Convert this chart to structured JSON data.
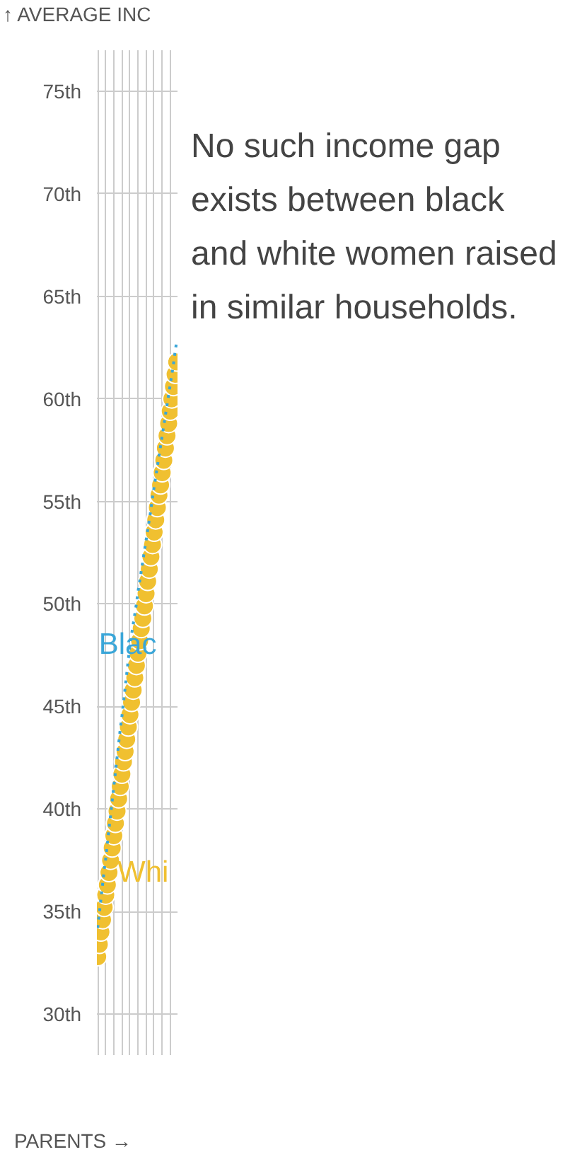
{
  "chart_data": {
    "type": "scatter",
    "ylabel": "↑ AVERAGE INC",
    "xlabel": "PARENTS →",
    "annotations": [
      "No such income gap exists between black and white women raised in similar households."
    ],
    "categories": [
      null,
      null,
      null,
      null,
      null,
      null,
      null,
      null,
      null,
      null,
      null,
      null,
      null,
      null,
      null,
      null,
      null,
      null,
      null,
      null,
      null,
      null,
      null,
      null,
      null,
      null,
      null,
      null,
      null,
      null,
      null,
      null,
      null,
      null,
      null,
      null,
      null,
      null,
      null,
      null,
      null,
      null,
      null,
      null,
      null,
      null,
      null,
      null,
      null,
      null
    ],
    "ylim": [
      28,
      77
    ],
    "yticks": [
      {
        "value": 30,
        "label": "30th"
      },
      {
        "value": 35,
        "label": "35th"
      },
      {
        "value": 40,
        "label": "40th"
      },
      {
        "value": 45,
        "label": "45th"
      },
      {
        "value": 50,
        "label": "50th"
      },
      {
        "value": 55,
        "label": "55th"
      },
      {
        "value": 60,
        "label": "60th"
      },
      {
        "value": 65,
        "label": "65th"
      },
      {
        "value": 70,
        "label": "70th"
      },
      {
        "value": 75,
        "label": "75th"
      }
    ],
    "grid": true,
    "series": [
      {
        "name": "Blac",
        "type": "line",
        "line_style": "dotted",
        "color": "#3aa6d8",
        "values": [
          34.2,
          34.9,
          35.6,
          36.3,
          37.0,
          37.6,
          38.3,
          39.0,
          39.7,
          40.4,
          41.1,
          41.8,
          42.5,
          43.2,
          43.9,
          44.5,
          45.2,
          45.9,
          46.6,
          47.3,
          48.0,
          48.5,
          49.0,
          49.5,
          50.0,
          50.6,
          51.1,
          51.6,
          52.1,
          52.6,
          53.1,
          53.6,
          54.1,
          54.6,
          55.2,
          55.7,
          56.2,
          56.7,
          57.2,
          57.7,
          58.2,
          58.7,
          59.2,
          59.7,
          60.2,
          60.7,
          61.2,
          61.7,
          62.3,
          62.8
        ]
      },
      {
        "name": "Whi",
        "color": "#f0c030",
        "marker": "circle",
        "values": [
          32.8,
          33.4,
          34.0,
          34.6,
          35.2,
          35.8,
          36.3,
          36.9,
          37.5,
          38.1,
          38.7,
          39.3,
          39.9,
          40.5,
          41.1,
          41.7,
          42.3,
          42.8,
          43.4,
          44.0,
          44.6,
          45.2,
          45.8,
          46.4,
          47.0,
          47.6,
          48.2,
          48.8,
          49.3,
          49.9,
          50.5,
          51.1,
          51.7,
          52.3,
          52.9,
          53.5,
          54.1,
          54.7,
          55.3,
          55.8,
          56.4,
          57.0,
          57.6,
          58.2,
          58.8,
          59.4,
          60.0,
          60.6,
          61.2,
          61.8
        ]
      }
    ]
  }
}
